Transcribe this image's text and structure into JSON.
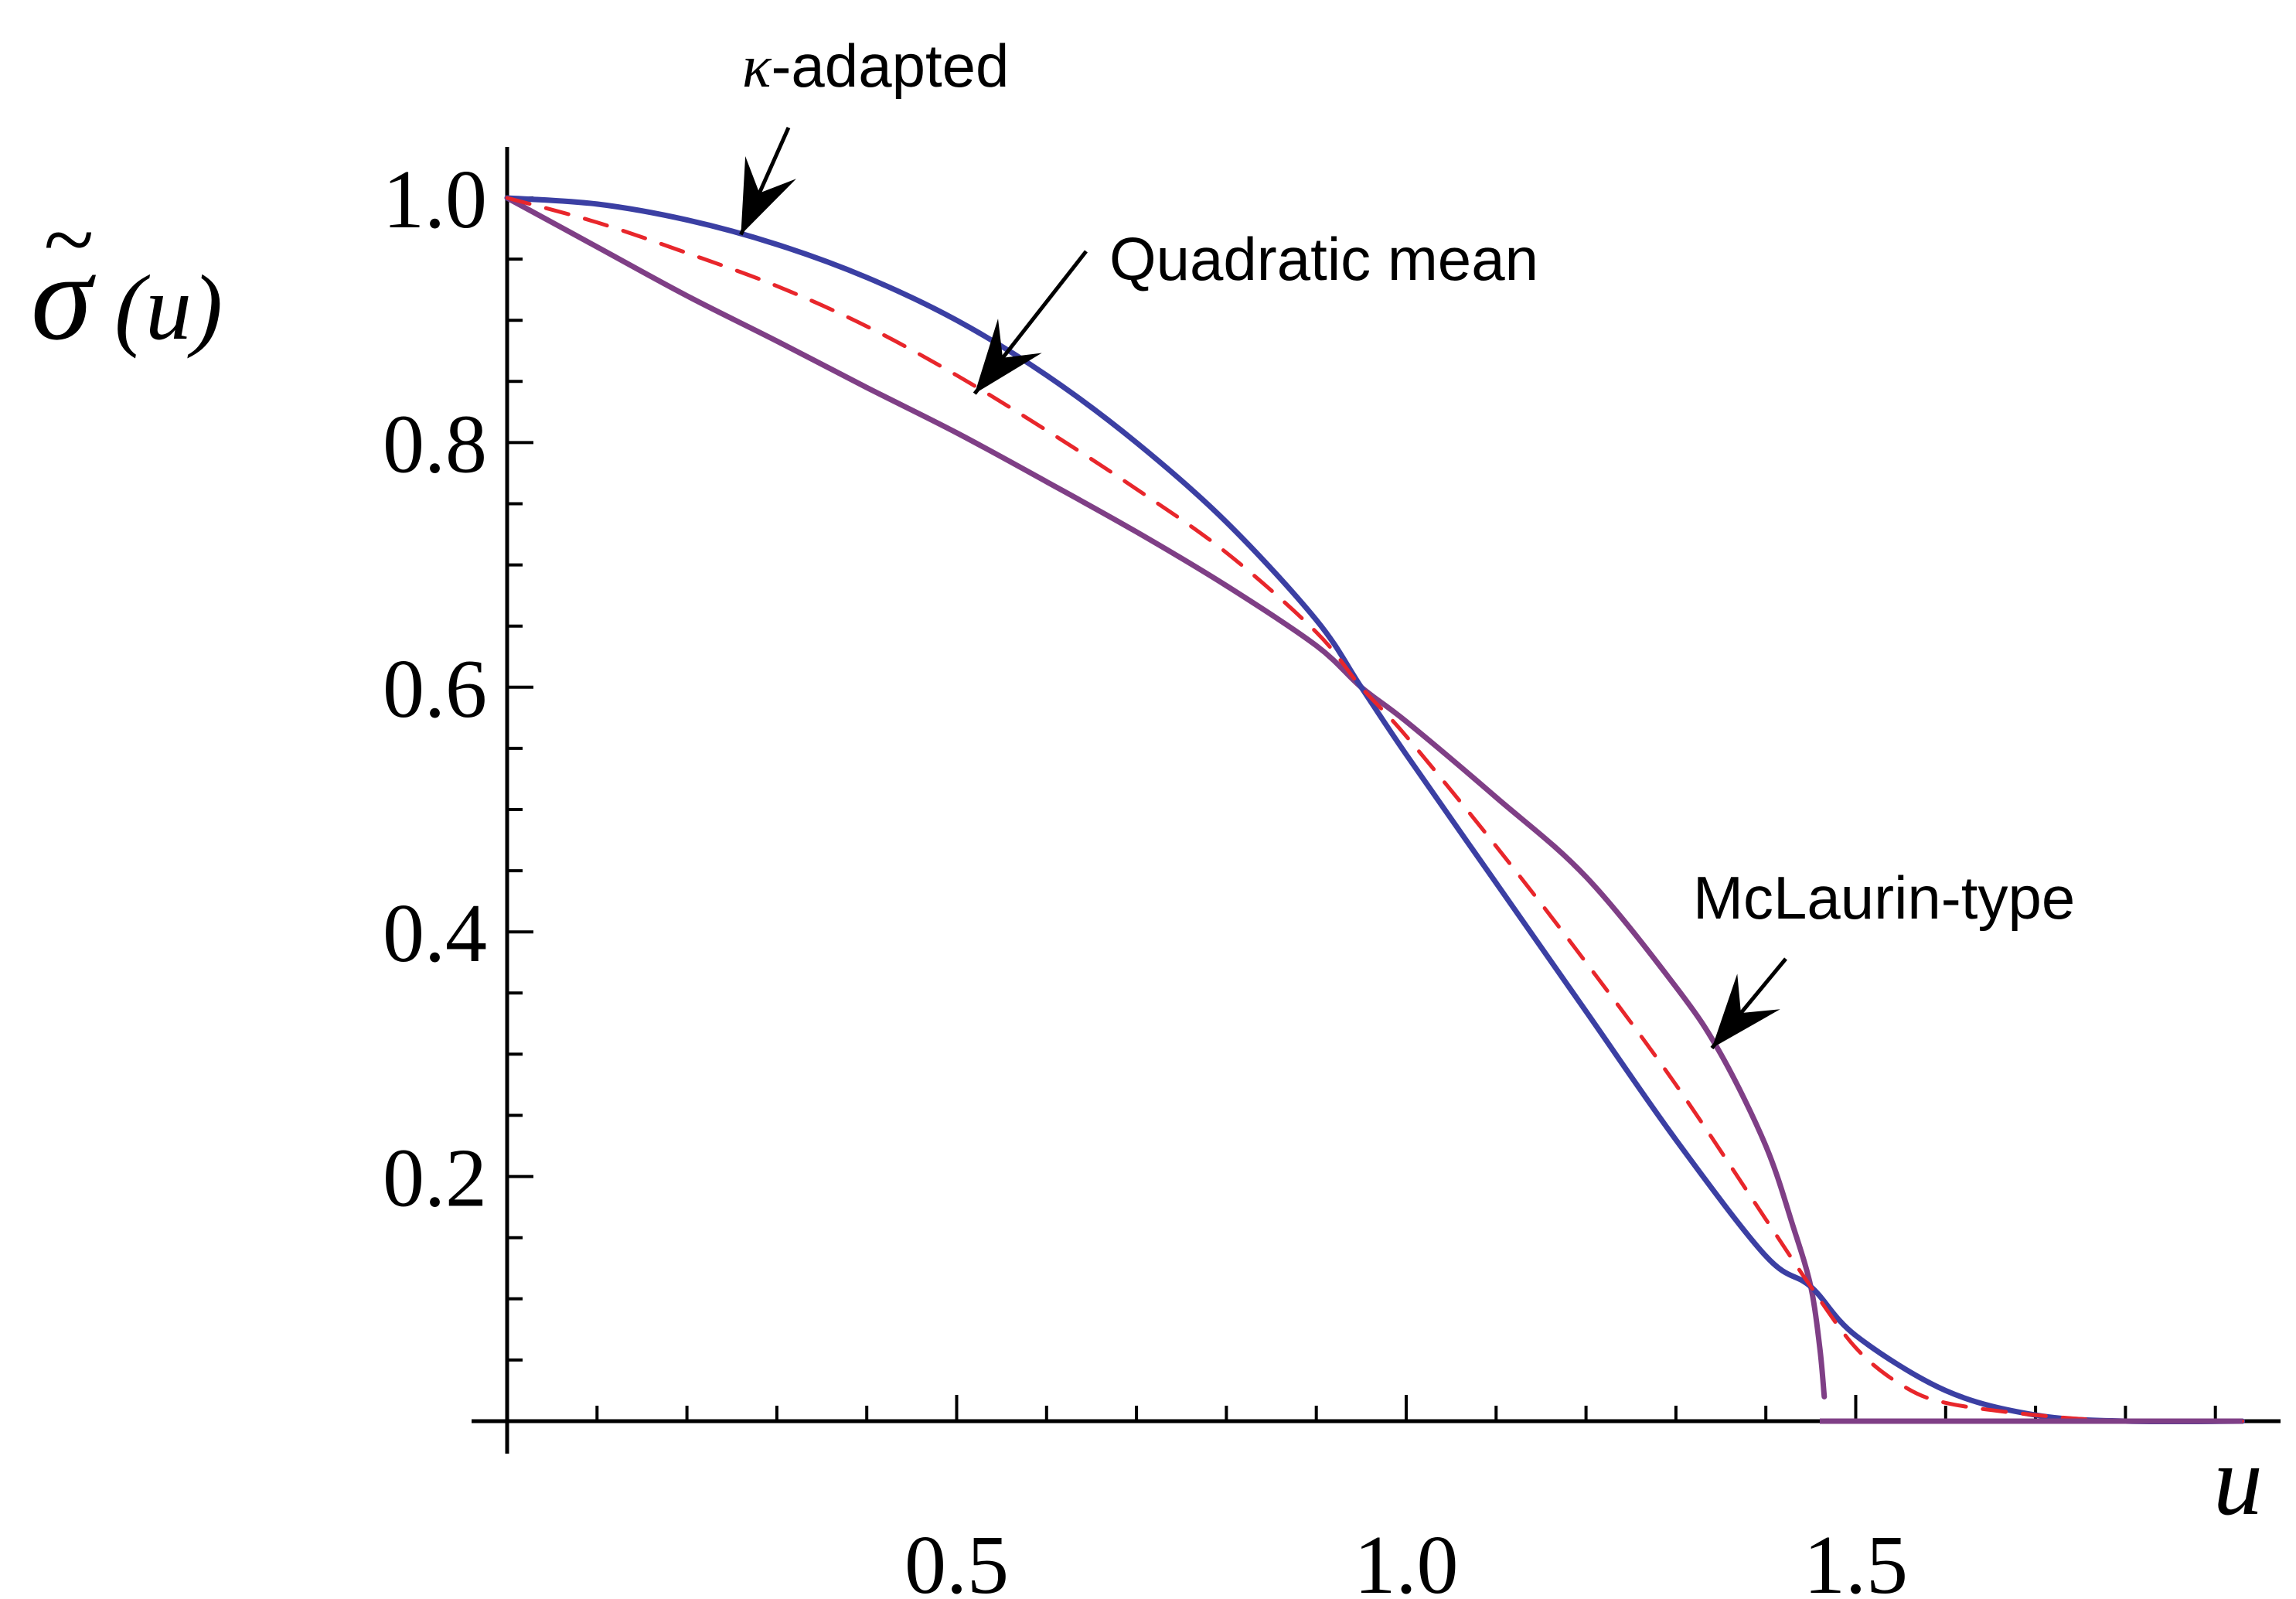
{
  "chart_data": {
    "type": "line",
    "xlabel": "u",
    "ylabel": "σ̃(u)",
    "ylabel_parts": {
      "symbol": "σ",
      "tilde": "~",
      "arg": "(u)"
    },
    "xlim": [
      0,
      1.95
    ],
    "ylim": [
      0,
      1.0
    ],
    "x_ticks": [
      {
        "value": 0.5,
        "label": "0.5"
      },
      {
        "value": 1.0,
        "label": "1.0"
      },
      {
        "value": 1.5,
        "label": "1.5"
      }
    ],
    "y_ticks": [
      {
        "value": 0.2,
        "label": "0.2"
      },
      {
        "value": 0.4,
        "label": "0.4"
      },
      {
        "value": 0.6,
        "label": "0.6"
      },
      {
        "value": 0.8,
        "label": "0.8"
      },
      {
        "value": 1.0,
        "label": "1.0"
      }
    ],
    "minor_x_step": 0.1,
    "minor_y_step": 0.05,
    "grid": false,
    "series": [
      {
        "name": "κ-adapted",
        "color": "#3b3fa3",
        "dashed": false,
        "x": [
          0.0,
          0.1,
          0.2,
          0.3,
          0.4,
          0.5,
          0.6,
          0.7,
          0.8,
          0.9,
          0.95,
          1.0,
          1.1,
          1.2,
          1.3,
          1.4,
          1.45,
          1.5,
          1.6,
          1.7,
          1.8,
          1.93
        ],
        "y": [
          1.0,
          0.995,
          0.982,
          0.962,
          0.935,
          0.9,
          0.855,
          0.8,
          0.735,
          0.655,
          0.6,
          0.545,
          0.44,
          0.335,
          0.23,
          0.135,
          0.11,
          0.07,
          0.025,
          0.005,
          0.0,
          0.0
        ]
      },
      {
        "name": "Quadratic mean",
        "color": "#e8262b",
        "dashed": true,
        "x": [
          0.0,
          0.1,
          0.2,
          0.3,
          0.4,
          0.5,
          0.6,
          0.7,
          0.8,
          0.9,
          0.95,
          1.0,
          1.1,
          1.2,
          1.3,
          1.4,
          1.45,
          1.5,
          1.55,
          1.6,
          1.7,
          1.8,
          1.93
        ],
        "y": [
          1.0,
          0.98,
          0.955,
          0.928,
          0.895,
          0.855,
          0.81,
          0.762,
          0.71,
          0.645,
          0.6,
          0.56,
          0.47,
          0.375,
          0.275,
          0.165,
          0.11,
          0.06,
          0.03,
          0.015,
          0.005,
          0.0,
          0.0
        ]
      },
      {
        "name": "McLaurin-type",
        "color": "#7f3f86",
        "dashed": false,
        "x": [
          0.0,
          0.1,
          0.2,
          0.3,
          0.4,
          0.5,
          0.6,
          0.7,
          0.8,
          0.9,
          0.95,
          1.0,
          1.1,
          1.2,
          1.3,
          1.35,
          1.4,
          1.43,
          1.45,
          1.46,
          1.465
        ],
        "y": [
          1.0,
          0.96,
          0.92,
          0.883,
          0.845,
          0.808,
          0.768,
          0.727,
          0.683,
          0.634,
          0.6,
          0.572,
          0.51,
          0.445,
          0.355,
          0.3,
          0.225,
          0.16,
          0.11,
          0.06,
          0.02
        ]
      }
    ],
    "flat_segment": {
      "x": [
        1.46,
        1.93
      ],
      "y": 0.0,
      "color": "#7f3f86"
    },
    "annotations": [
      {
        "text_prefix": "κ",
        "text": "-adapted",
        "points_to": [
          0.26,
          0.97
        ],
        "position": "top"
      },
      {
        "text": "Quadratic mean",
        "points_to": [
          0.52,
          0.84
        ],
        "position": "upper-middle"
      },
      {
        "text": "McLaurin-type",
        "points_to": [
          1.34,
          0.305
        ],
        "position": "right"
      }
    ]
  }
}
